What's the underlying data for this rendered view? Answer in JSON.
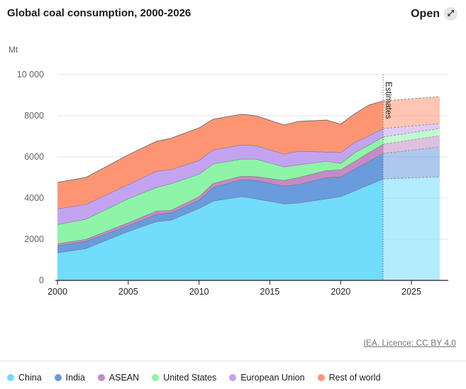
{
  "header": {
    "title": "Global coal consumption, 2000-2026",
    "open_label": "Open",
    "open_icon": "expand-icon"
  },
  "source_label": "IEA. Licence: CC BY 4.0",
  "chart_data": {
    "type": "area",
    "stacked": true,
    "title": "Global coal consumption, 2000-2026",
    "ylabel": "Mt",
    "xlabel": "",
    "ylim": [
      0,
      10000
    ],
    "xlim": [
      2000,
      2027
    ],
    "y_ticks": [
      0,
      2000,
      4000,
      6000,
      8000,
      10000
    ],
    "y_tick_labels": [
      "0",
      "2000",
      "4000",
      "6000",
      "8000",
      "10 000"
    ],
    "x_ticks": [
      2000,
      2005,
      2010,
      2015,
      2020,
      2025
    ],
    "x_tick_labels": [
      "2000",
      "2005",
      "2010",
      "2015",
      "2020",
      "2025"
    ],
    "grid": true,
    "estimates_from": 2023,
    "annotation": "Estimates",
    "legend_position": "bottom",
    "x": [
      2000,
      2002,
      2005,
      2007,
      2008,
      2010,
      2011,
      2013,
      2014,
      2016,
      2017,
      2019,
      2020,
      2021,
      2022,
      2023,
      2027
    ],
    "series": [
      {
        "name": "China",
        "color": "#72dcfc",
        "values": [
          1345,
          1550,
          2380,
          2860,
          2930,
          3500,
          3860,
          4070,
          3970,
          3720,
          3760,
          3970,
          4070,
          4360,
          4650,
          4930,
          5030
        ]
      },
      {
        "name": "India",
        "color": "#6a9bdc",
        "values": [
          345,
          350,
          280,
          350,
          350,
          400,
          660,
          830,
          890,
          870,
          900,
          1030,
          960,
          1050,
          1140,
          1240,
          1450
        ]
      },
      {
        "name": "ASEAN",
        "color": "#c48bc4",
        "values": [
          100,
          100,
          140,
          170,
          130,
          170,
          200,
          170,
          190,
          270,
          340,
          340,
          350,
          380,
          420,
          450,
          550
        ]
      },
      {
        "name": "United States",
        "color": "#8ef4a8",
        "values": [
          930,
          970,
          1170,
          1140,
          1280,
          1100,
          940,
          830,
          850,
          660,
          620,
          450,
          310,
          420,
          370,
          350,
          350
        ]
      },
      {
        "name": "European Union",
        "color": "#c3a3f0",
        "values": [
          760,
          720,
          690,
          790,
          690,
          660,
          680,
          690,
          650,
          620,
          660,
          450,
          520,
          500,
          450,
          410,
          240
        ]
      },
      {
        "name": "Rest of world",
        "color": "#fd9575",
        "values": [
          1280,
          1310,
          1440,
          1450,
          1520,
          1580,
          1490,
          1480,
          1450,
          1410,
          1440,
          1550,
          1380,
          1390,
          1490,
          1340,
          1310
        ]
      }
    ]
  }
}
